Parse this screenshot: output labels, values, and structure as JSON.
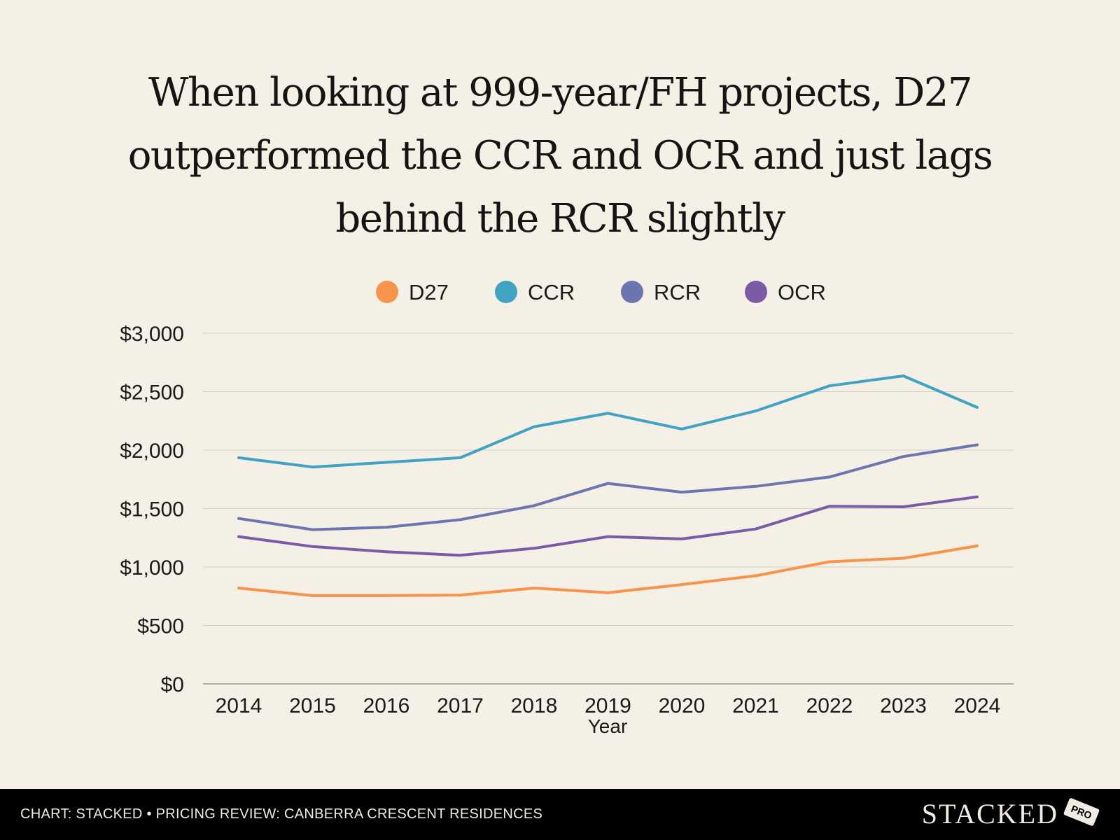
{
  "title_lines": [
    "When looking at 999-year/FH projects, D27",
    "outperformed the CCR and OCR and just lags",
    "behind the RCR slightly"
  ],
  "footer": {
    "credit": "CHART: STACKED • PRICING REVIEW: CANBERRA CRESCENT RESIDENCES",
    "brand": "STACKED",
    "badge": "PRO"
  },
  "chart_data": {
    "type": "line",
    "title": "When looking at 999-year/FH projects, D27 outperformed the CCR and OCR and just lags behind the RCR slightly",
    "xlabel": "Year",
    "ylabel": "",
    "x": [
      "2014",
      "2015",
      "2016",
      "2017",
      "2018",
      "2019",
      "2020",
      "2021",
      "2022",
      "2023",
      "2024"
    ],
    "ylim": [
      0,
      3000
    ],
    "yticks": [
      0,
      500,
      1000,
      1500,
      2000,
      2500,
      3000
    ],
    "ytick_labels": [
      "$0",
      "$500",
      "$1,000",
      "$1,500",
      "$2,000",
      "$2,500",
      "$3,000"
    ],
    "grid": true,
    "legend_position": "top-center",
    "series": [
      {
        "name": "D27",
        "color": "#f7944b",
        "values": [
          820,
          755,
          755,
          760,
          820,
          780,
          850,
          925,
          1045,
          1075,
          1180
        ]
      },
      {
        "name": "CCR",
        "color": "#41a2c4",
        "values": [
          1935,
          1855,
          1895,
          1935,
          2200,
          2315,
          2180,
          2335,
          2550,
          2635,
          2365
        ]
      },
      {
        "name": "RCR",
        "color": "#6d75b0",
        "values": [
          1415,
          1320,
          1340,
          1405,
          1525,
          1715,
          1640,
          1690,
          1770,
          1945,
          2045
        ]
      },
      {
        "name": "OCR",
        "color": "#7b5ba6",
        "values": [
          1260,
          1175,
          1130,
          1100,
          1160,
          1260,
          1240,
          1325,
          1520,
          1515,
          1600
        ]
      }
    ]
  }
}
